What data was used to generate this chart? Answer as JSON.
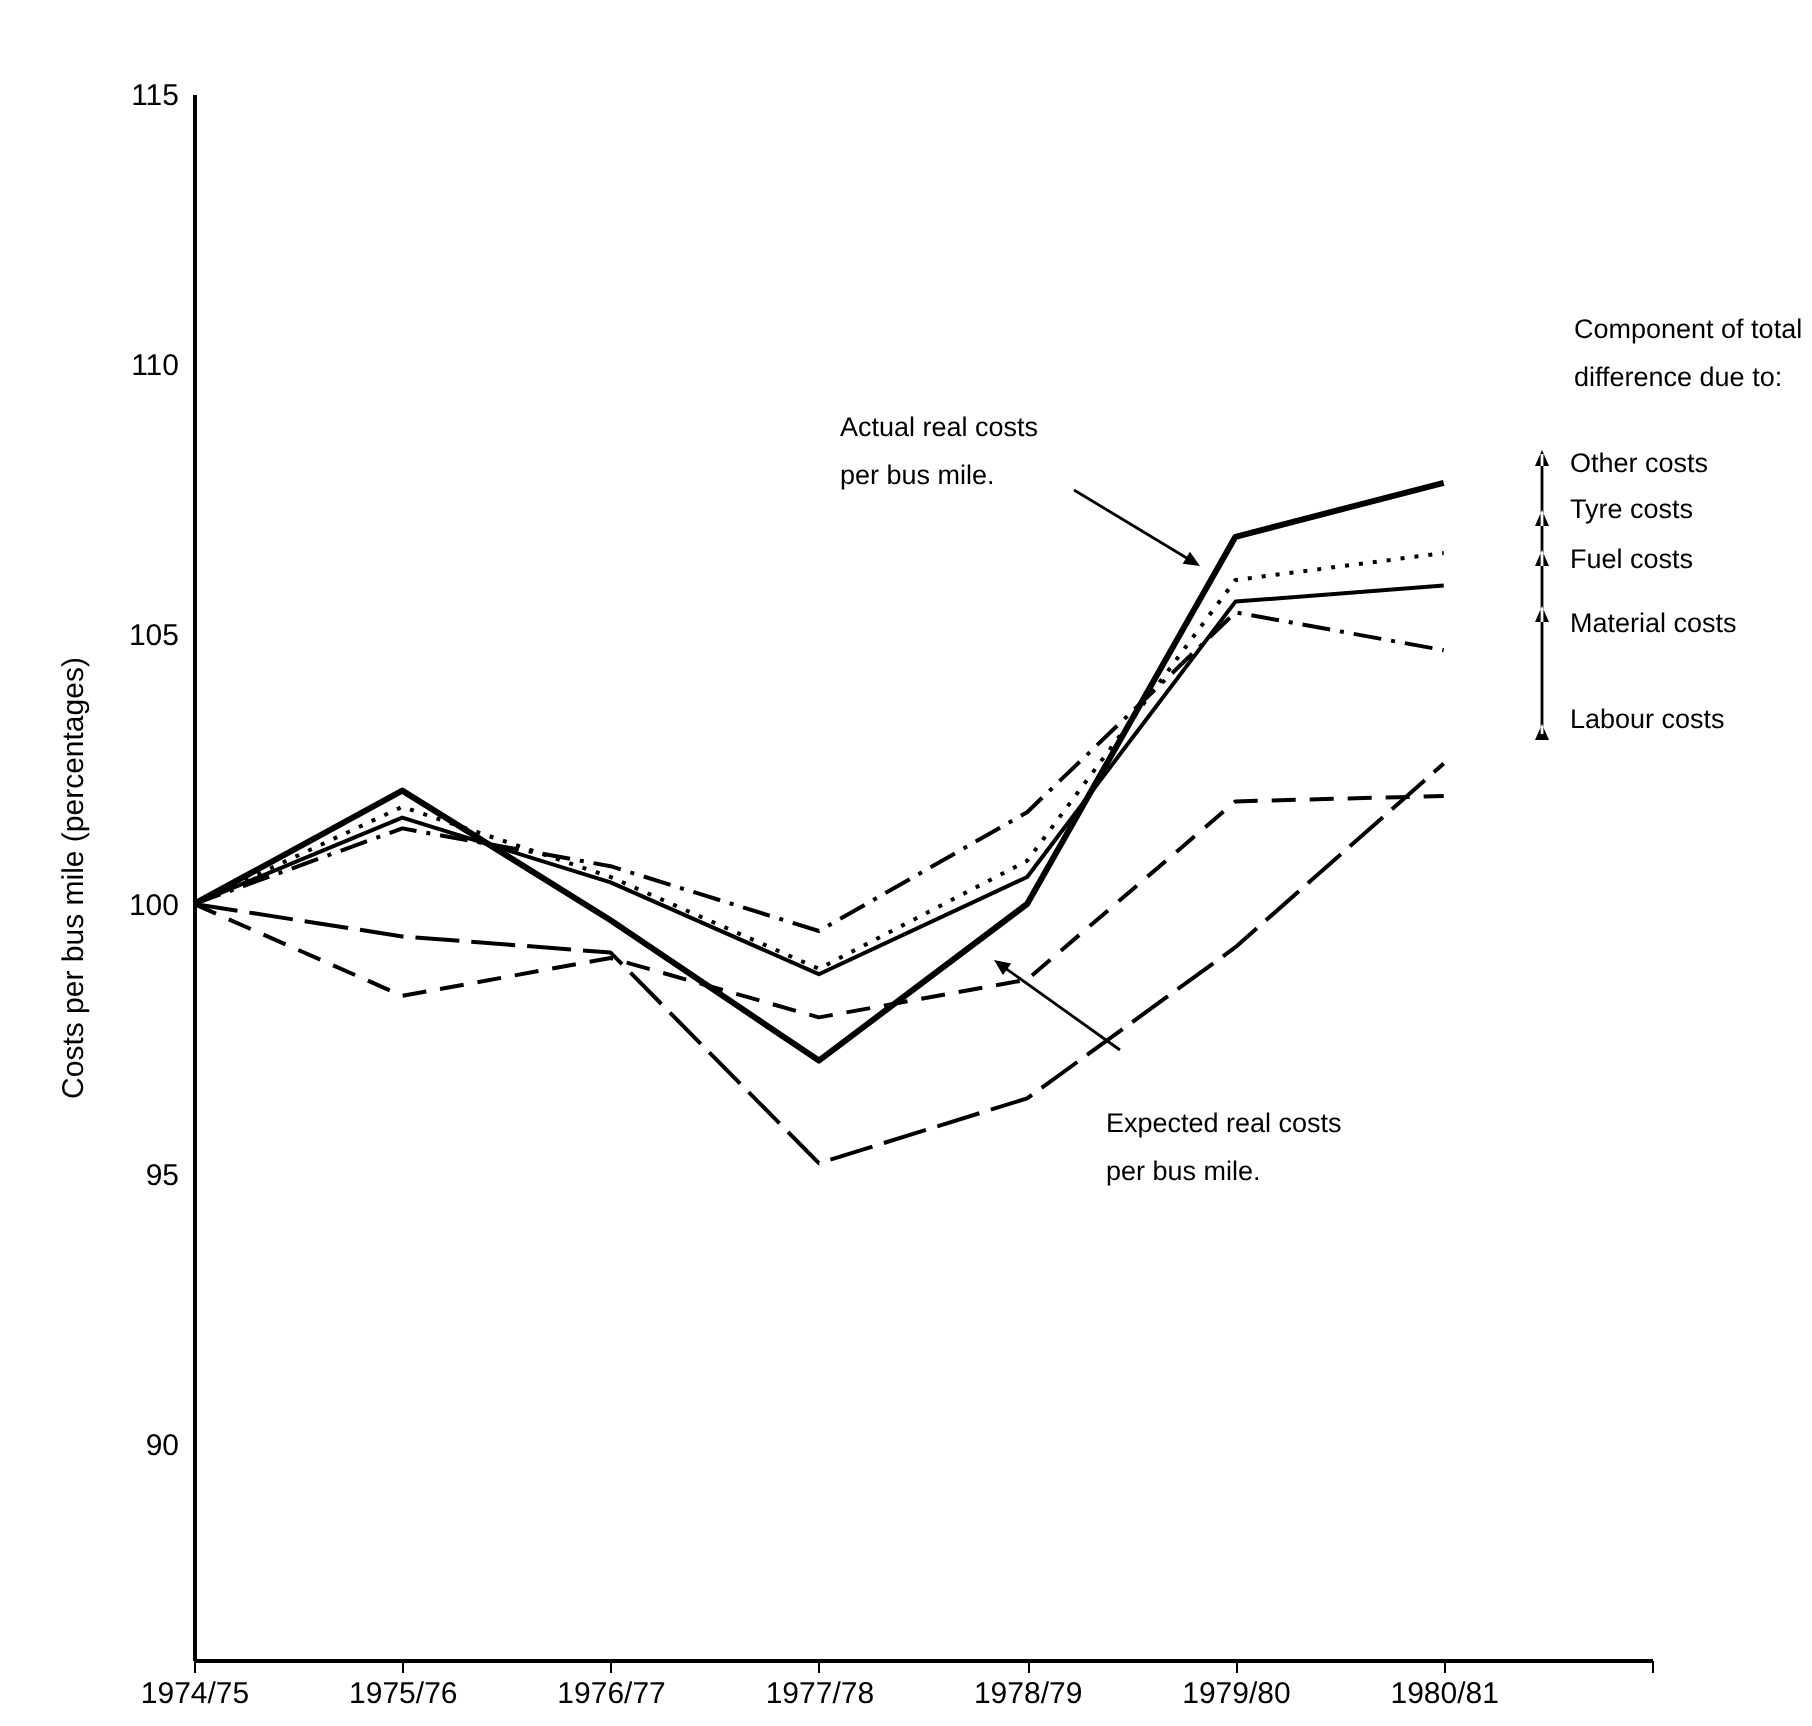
{
  "chart_data": {
    "type": "line",
    "ylabel": "Costs per bus mile (percentages)",
    "categories": [
      "1974/75",
      "1975/76",
      "1976/77",
      "1977/78",
      "1978/79",
      "1979/80",
      "1980/81",
      null
    ],
    "series": [
      {
        "color": "#000000",
        "line_style": "solid",
        "values": [
          100,
          102.1,
          99.7,
          97.1,
          100.0,
          106.8,
          107.8,
          null
        ]
      },
      {
        "color": "#000000",
        "line_style": "dotted",
        "values": [
          100,
          101.8,
          100.5,
          98.8,
          100.8,
          106.0,
          106.5,
          null
        ]
      },
      {
        "color": "#000000",
        "line_style": "solid",
        "values": [
          100,
          101.6,
          100.4,
          98.7,
          100.5,
          105.6,
          105.9,
          null
        ]
      },
      {
        "color": "#000000",
        "line_style": "dashdot",
        "values": [
          100,
          101.4,
          100.7,
          99.5,
          101.7,
          105.4,
          104.7,
          null
        ]
      },
      {
        "color": "#000000",
        "line_style": "dashed",
        "values": [
          100,
          98.3,
          99.0,
          97.9,
          98.6,
          101.9,
          102.0,
          null
        ]
      },
      {
        "color": "#000000",
        "line_style": "longdash",
        "values": [
          100,
          99.4,
          99.1,
          95.2,
          96.4,
          99.2,
          102.6,
          null
        ]
      }
    ],
    "ylim": [
      86,
      115
    ],
    "yticks": [
      90,
      95,
      100,
      105,
      110,
      115
    ],
    "grid": false,
    "legend": false,
    "annotations": [
      "Actual real costs per bus mile.",
      "Expected real costs per bus mile.",
      "Component of total difference due to:",
      "Other costs",
      "Tyre costs",
      "Fuel costs",
      "Material costs",
      "Labour costs"
    ]
  }
}
